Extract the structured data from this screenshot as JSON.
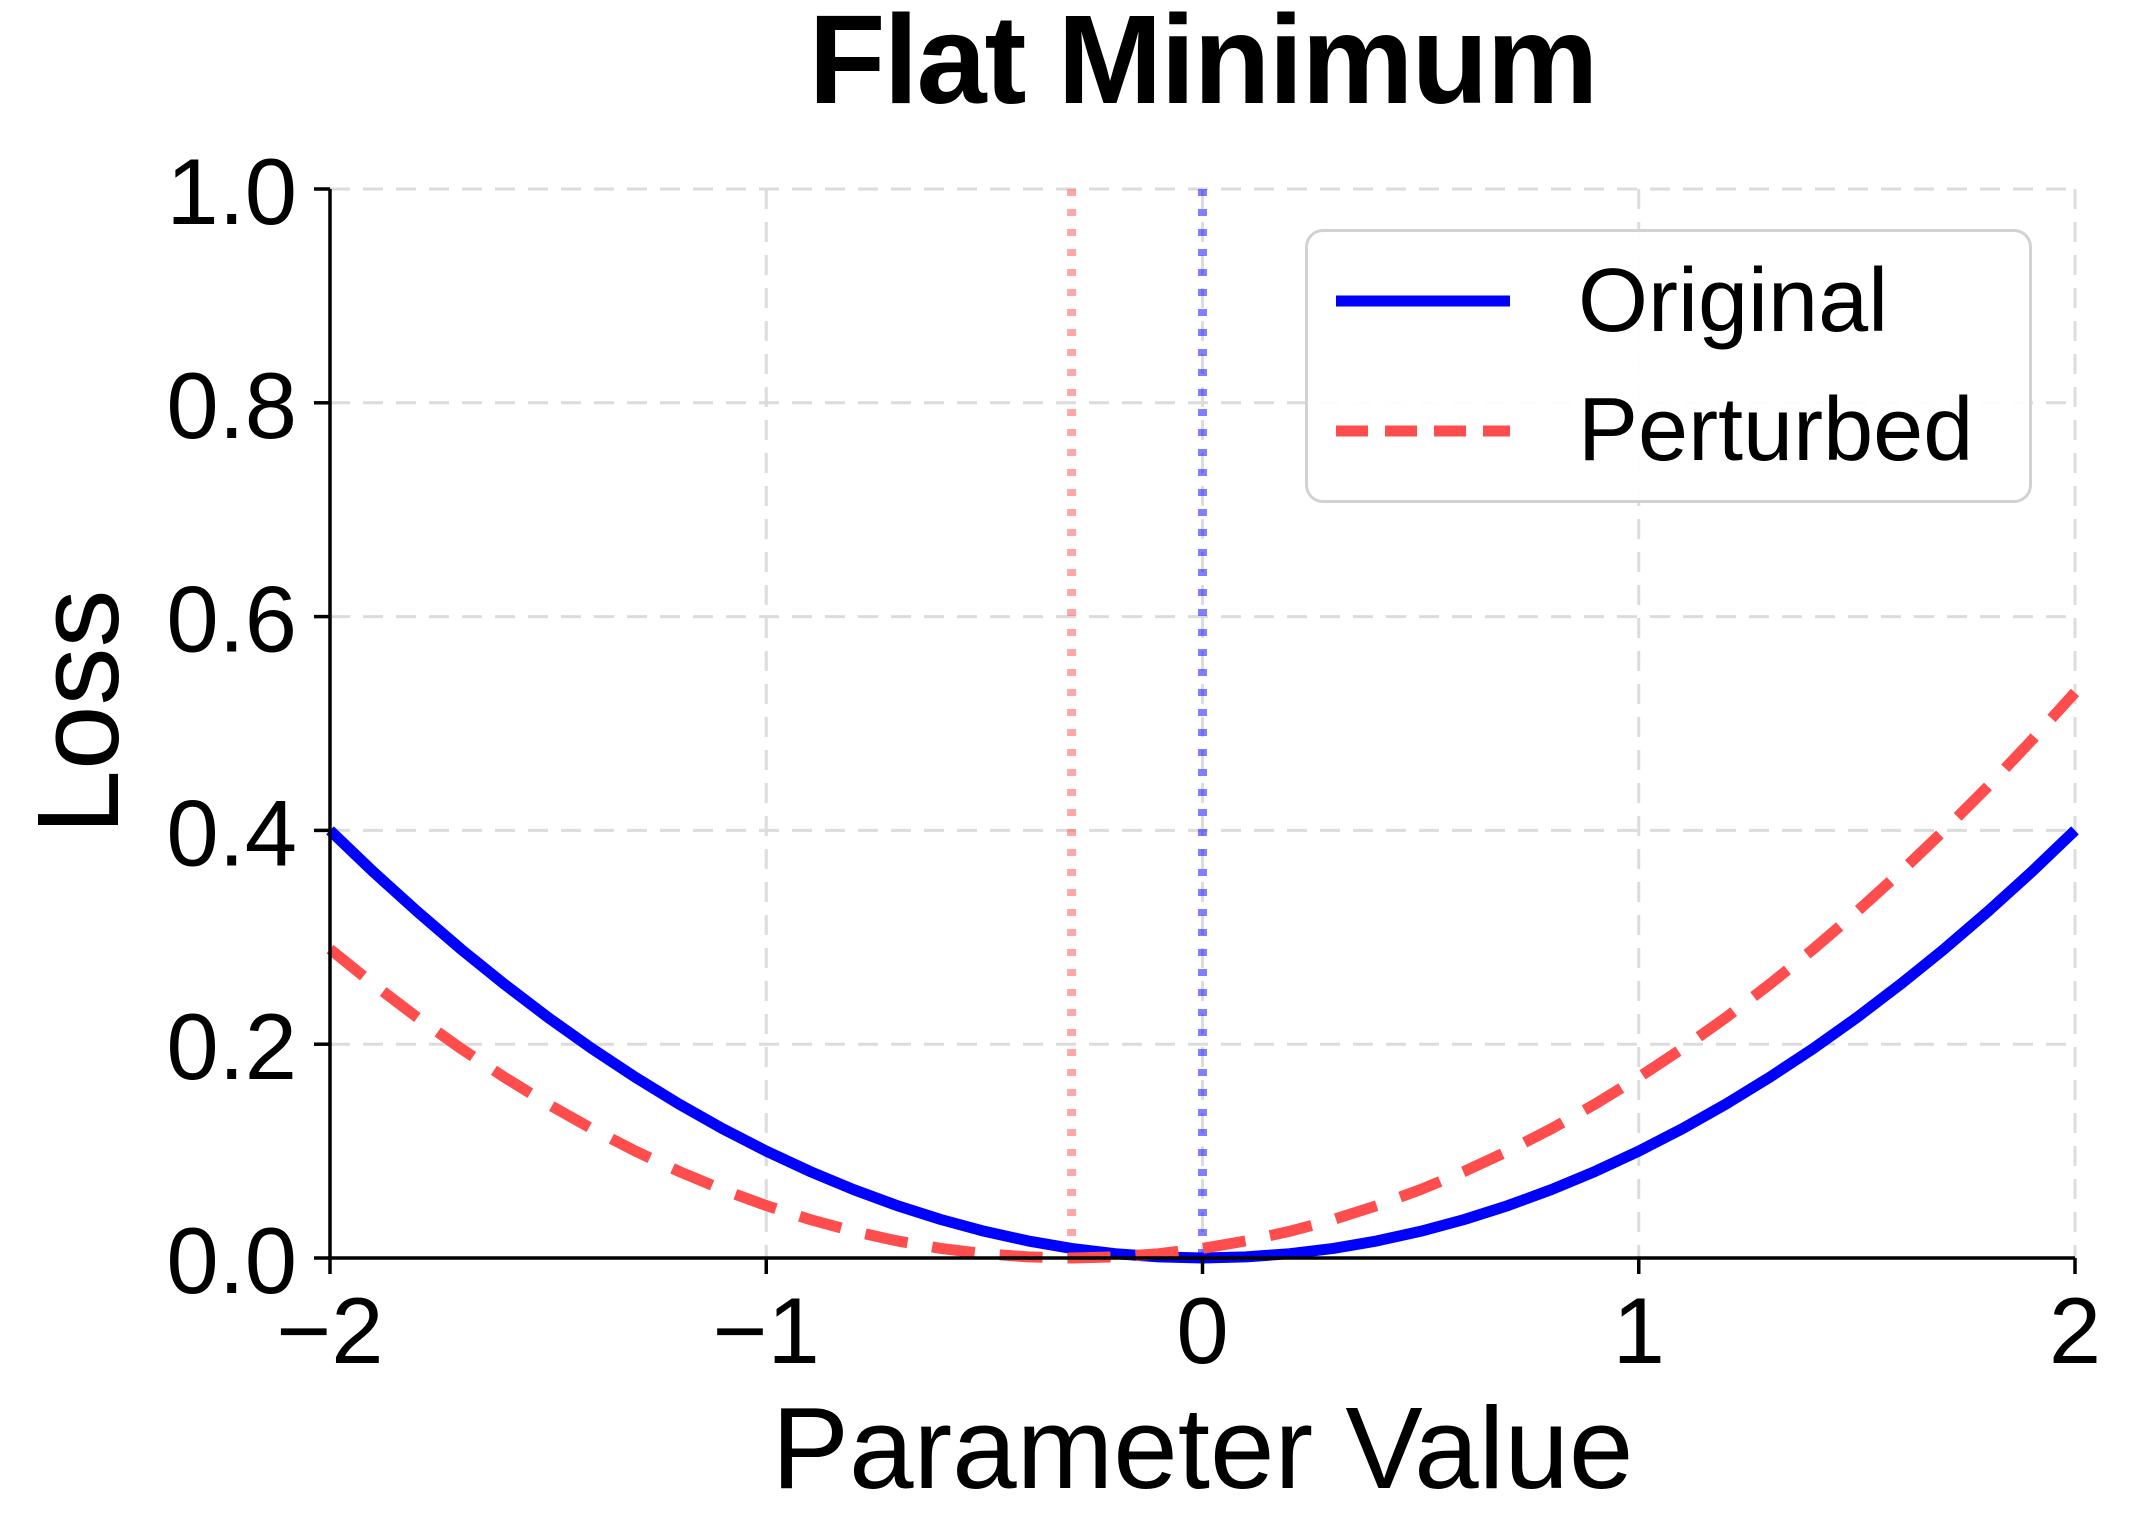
{
  "chart_data": {
    "type": "line",
    "title": "Flat Minimum",
    "xlabel": "Parameter Value",
    "ylabel": "Loss",
    "xlim": [
      -2,
      2
    ],
    "ylim": [
      0,
      1
    ],
    "xticks": [
      -2,
      -1,
      0,
      1,
      2
    ],
    "xtick_labels": [
      "−2",
      "−1",
      "0",
      "1",
      "2"
    ],
    "yticks": [
      0,
      0.2,
      0.4,
      0.6,
      0.8,
      1.0
    ],
    "ytick_labels": [
      "0.0",
      "0.2",
      "0.4",
      "0.6",
      "0.8",
      "1.0"
    ],
    "grid": true,
    "grid_color": "#dcdcdc",
    "legend_position": "upper right",
    "x": [
      -2,
      -1.9,
      -1.8,
      -1.7,
      -1.6,
      -1.5,
      -1.4,
      -1.3,
      -1.2,
      -1.1,
      -1,
      -0.9,
      -0.8,
      -0.7,
      -0.6,
      -0.5,
      -0.4,
      -0.3,
      -0.2,
      -0.1,
      0,
      0.1,
      0.2,
      0.3,
      0.4,
      0.5,
      0.6,
      0.7,
      0.8,
      0.9,
      1,
      1.1,
      1.2,
      1.3,
      1.4,
      1.5,
      1.6,
      1.7,
      1.8,
      1.9,
      2
    ],
    "series": [
      {
        "name": "Original",
        "color": "#0000ff",
        "style": "solid",
        "values": [
          0.4,
          0.361,
          0.324,
          0.289,
          0.256,
          0.225,
          0.196,
          0.169,
          0.144,
          0.121,
          0.1,
          0.081,
          0.064,
          0.049,
          0.036,
          0.025,
          0.016,
          0.009,
          0.004,
          0.001,
          0,
          0.001,
          0.004,
          0.009,
          0.016,
          0.025,
          0.036,
          0.049,
          0.064,
          0.081,
          0.1,
          0.121,
          0.144,
          0.169,
          0.196,
          0.225,
          0.256,
          0.289,
          0.324,
          0.361,
          0.4
        ]
      },
      {
        "name": "Perturbed",
        "color": "#ff4d4d",
        "style": "dashed",
        "values": [
          0.289,
          0.256,
          0.225,
          0.196,
          0.169,
          0.144,
          0.121,
          0.1,
          0.081,
          0.064,
          0.049,
          0.036,
          0.025,
          0.016,
          0.009,
          0.004,
          0.001,
          0,
          0.001,
          0.004,
          0.009,
          0.016,
          0.025,
          0.036,
          0.049,
          0.064,
          0.081,
          0.1,
          0.121,
          0.144,
          0.169,
          0.196,
          0.225,
          0.256,
          0.289,
          0.324,
          0.361,
          0.4,
          0.441,
          0.484,
          0.529
        ]
      }
    ],
    "vlines": [
      {
        "x": 0,
        "color": "#0000ff",
        "style": "dotted",
        "opacity": 0.5,
        "name": "original-minimum-marker"
      },
      {
        "x": -0.3,
        "color": "#ff4d4d",
        "style": "dotted",
        "opacity": 0.5,
        "name": "perturbed-minimum-marker"
      }
    ]
  }
}
